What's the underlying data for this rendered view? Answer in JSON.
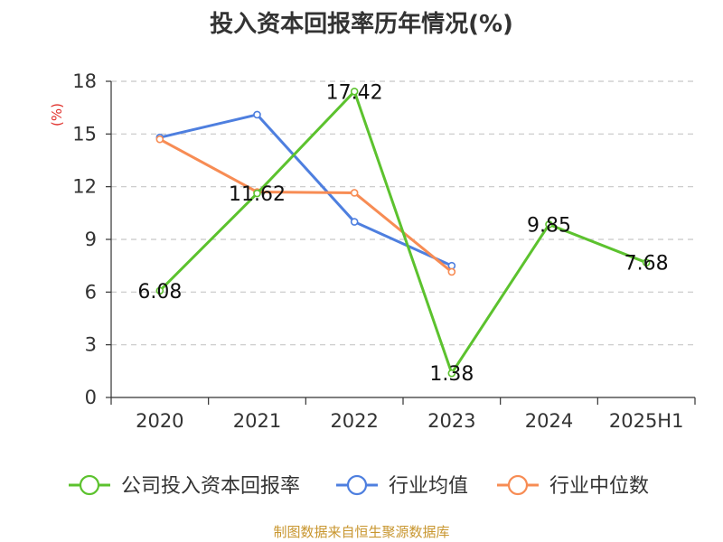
{
  "chart_data": {
    "type": "line",
    "title": "投入资本回报率历年情况(%)",
    "ylabel": "(%)",
    "xlabel": "",
    "categories": [
      "2020",
      "2021",
      "2022",
      "2023",
      "2024",
      "2025H1"
    ],
    "ylim": [
      0,
      18
    ],
    "yticks": [
      0,
      3,
      6,
      9,
      12,
      15,
      18
    ],
    "grid": true,
    "legend_position": "bottom",
    "series": [
      {
        "name": "公司投入资本回报率",
        "color": "#5cc22e",
        "values": [
          6.08,
          11.62,
          17.42,
          1.38,
          9.85,
          7.68
        ],
        "labels": [
          "6.08",
          "11.62",
          "17.42",
          "1.38",
          "9.85",
          "7.68"
        ]
      },
      {
        "name": "行业均值",
        "color": "#4e7fdf",
        "values": [
          14.8,
          16.1,
          10.0,
          7.5,
          null,
          null
        ]
      },
      {
        "name": "行业中位数",
        "color": "#f78c54",
        "values": [
          14.7,
          11.7,
          11.65,
          7.15,
          null,
          null
        ]
      }
    ]
  },
  "source_note": "制图数据来自恒生聚源数据库"
}
